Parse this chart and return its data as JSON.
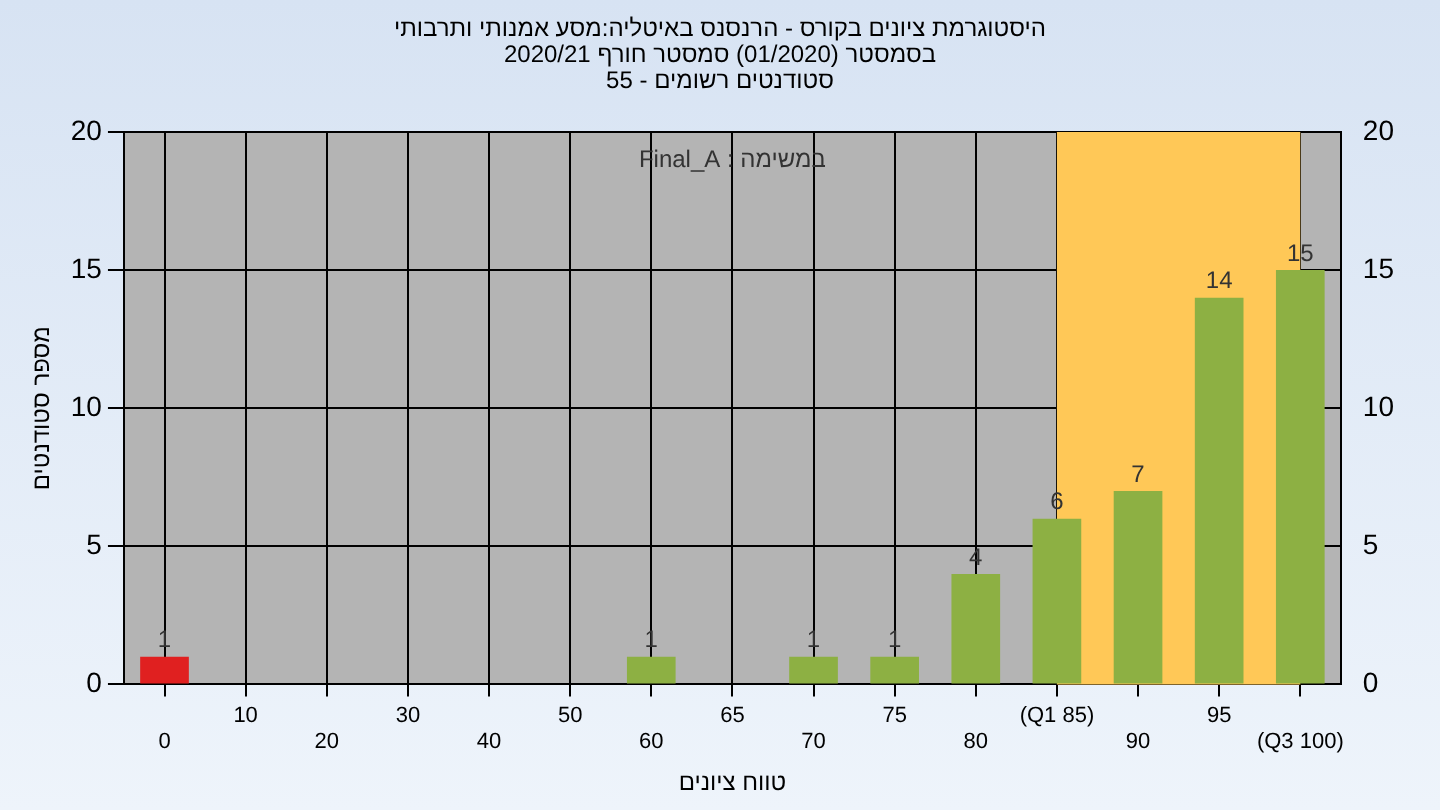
{
  "chart_data": {
    "type": "bar",
    "title": "היסטוגרמת ציונים בקורס - הרנסנס באיטליה:מסע אמנותי ותרבותי",
    "subtitle": "בסמסטר  (01/2020)  סמסטר חורף  2020/21\nסטודנטים רשומים - 55",
    "xlabel": "טווח ציונים",
    "ylabel": "מספר סטודנטים",
    "annotations": [
      "במשימה : Final_A"
    ],
    "categories": [
      "0",
      "10",
      "20",
      "30",
      "40",
      "50",
      "60",
      "65",
      "70",
      "75",
      "80",
      "(Q1 85)",
      "90",
      "95",
      "(Q3 100)"
    ],
    "values": [
      1,
      0,
      0,
      0,
      0,
      0,
      1,
      0,
      1,
      1,
      4,
      6,
      7,
      14,
      15
    ],
    "colors": [
      "#e02020",
      "#8db043",
      "#8db043",
      "#8db043",
      "#8db043",
      "#8db043",
      "#8db043",
      "#8db043",
      "#8db043",
      "#8db043",
      "#8db043",
      "#8db043",
      "#8db043",
      "#8db043",
      "#8db043"
    ],
    "value_labels": [
      "1",
      null,
      null,
      null,
      null,
      null,
      "1",
      null,
      "1",
      "1",
      "4",
      "6",
      "7",
      "14",
      "15"
    ],
    "bands": [
      {
        "axis": "x",
        "from": "(Q1 85)",
        "to": "(Q3 100)",
        "color": "#ffc857"
      }
    ],
    "ylim": [
      0,
      20
    ],
    "yticks": [
      0,
      5,
      10,
      15,
      20
    ],
    "y2lim": [
      0,
      20
    ],
    "y2ticks": [
      0,
      5,
      10,
      15,
      20
    ],
    "grid": true,
    "legend": false
  }
}
